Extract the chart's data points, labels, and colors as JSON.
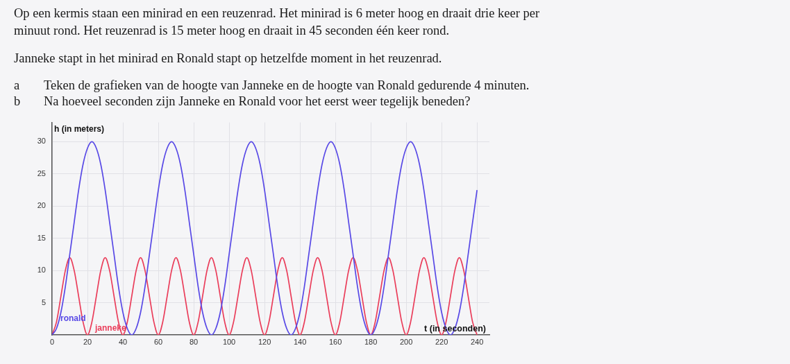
{
  "chart_data": {
    "type": "line",
    "title": "Op een kermis staan een minirad en een reuzenrad. Het minirad is 6 meter hoog en draait drie keer per minuut rond. Het reuzenrad is 15 meter hoog en draait in 45 seconden één keer rond.",
    "subtitle": "Janneke stapt in het minirad en Ronald stapt op hetzelfde moment in het reuzenrad.",
    "annotations": [
      "a Teken de grafieken van de hoogte van Janneke en de hoogte van Ronald gedurende 4 minuten.",
      "b Na hoeveel seconden zijn Janneke en Ronald voor het eerst weer tegelijk beneden?"
    ],
    "xlabel": "t (in seconden)",
    "ylabel": "h (in meters)",
    "x": [
      0,
      2.5,
      5,
      7.5,
      10,
      12.5,
      15,
      17.5,
      20,
      22.5,
      25,
      27.5,
      30,
      32.5,
      35,
      37.5,
      40,
      42.5,
      45,
      47.5,
      50,
      52.5,
      55,
      57.5,
      60,
      62.5,
      65,
      67.5,
      70,
      72.5,
      75,
      77.5,
      80,
      82.5,
      85,
      87.5,
      90,
      92.5,
      95,
      97.5,
      100,
      102.5,
      105,
      107.5,
      110,
      112.5,
      115,
      117.5,
      120,
      122.5,
      125,
      127.5,
      130,
      132.5,
      135,
      137.5,
      140,
      142.5,
      145,
      147.5,
      150,
      152.5,
      155,
      157.5,
      160,
      162.5,
      165,
      167.5,
      170,
      172.5,
      175,
      177.5,
      180,
      182.5,
      185,
      187.5,
      190,
      192.5,
      195,
      197.5,
      200,
      202.5,
      205,
      207.5,
      210,
      212.5,
      215,
      217.5,
      220,
      222.5,
      225,
      227.5,
      230,
      232.5,
      235,
      237.5,
      240
    ],
    "series": [
      {
        "name": "ronald",
        "color": "#5849e6",
        "values": [
          0,
          1,
          3.5,
          7.5,
          12.5,
          17.5,
          22.5,
          26.5,
          29,
          30,
          29,
          26.5,
          22.5,
          17.5,
          12.5,
          7.5,
          3.5,
          1,
          0,
          1,
          3.5,
          7.5,
          12.5,
          17.5,
          22.5,
          26.5,
          29,
          30,
          29,
          26.5,
          22.5,
          17.5,
          12.5,
          7.5,
          3.5,
          1,
          0,
          1,
          3.5,
          7.5,
          12.5,
          17.5,
          22.5,
          26.5,
          29,
          30,
          29,
          26.5,
          22.5,
          17.5,
          12.5,
          7.5,
          3.5,
          1,
          0,
          1,
          3.5,
          7.5,
          12.5,
          17.5,
          22.5,
          26.5,
          29,
          30,
          29,
          26.5,
          22.5,
          17.5,
          12.5,
          7.5,
          3.5,
          1,
          0,
          1,
          3.5,
          7.5,
          12.5,
          17.5,
          22.5,
          26.5,
          29,
          30,
          29,
          26.5,
          22.5,
          17.5,
          12.5,
          7.5,
          3.5,
          1,
          0,
          1,
          3.5,
          7.5,
          12.5,
          17.5,
          22.5
        ]
      },
      {
        "name": "janneke",
        "color": "#ea3d5a",
        "values": [
          0,
          2,
          6,
          10,
          12,
          10,
          6,
          2,
          0,
          2,
          6,
          10,
          12,
          10,
          6,
          2,
          0,
          2,
          6,
          10,
          12,
          10,
          6,
          2,
          0,
          2,
          6,
          10,
          12,
          10,
          6,
          2,
          0,
          2,
          6,
          10,
          12,
          10,
          6,
          2,
          0,
          2,
          6,
          10,
          12,
          10,
          6,
          2,
          0,
          2,
          6,
          10,
          12,
          10,
          6,
          2,
          0,
          2,
          6,
          10,
          12,
          10,
          6,
          2,
          0,
          2,
          6,
          10,
          12,
          10,
          6,
          2,
          0,
          2,
          6,
          10,
          12,
          10,
          6,
          2,
          0,
          2,
          6,
          10,
          12,
          10,
          6,
          2,
          0,
          2,
          6,
          10,
          12,
          10,
          6,
          2,
          0
        ]
      }
    ],
    "xlim": [
      0,
      247
    ],
    "xticks": [
      0,
      20,
      40,
      60,
      80,
      100,
      120,
      140,
      160,
      180,
      200,
      220,
      240
    ],
    "ylim": [
      0,
      33
    ],
    "yticks": [
      5,
      10,
      15,
      20,
      25,
      30
    ],
    "grid": true
  }
}
